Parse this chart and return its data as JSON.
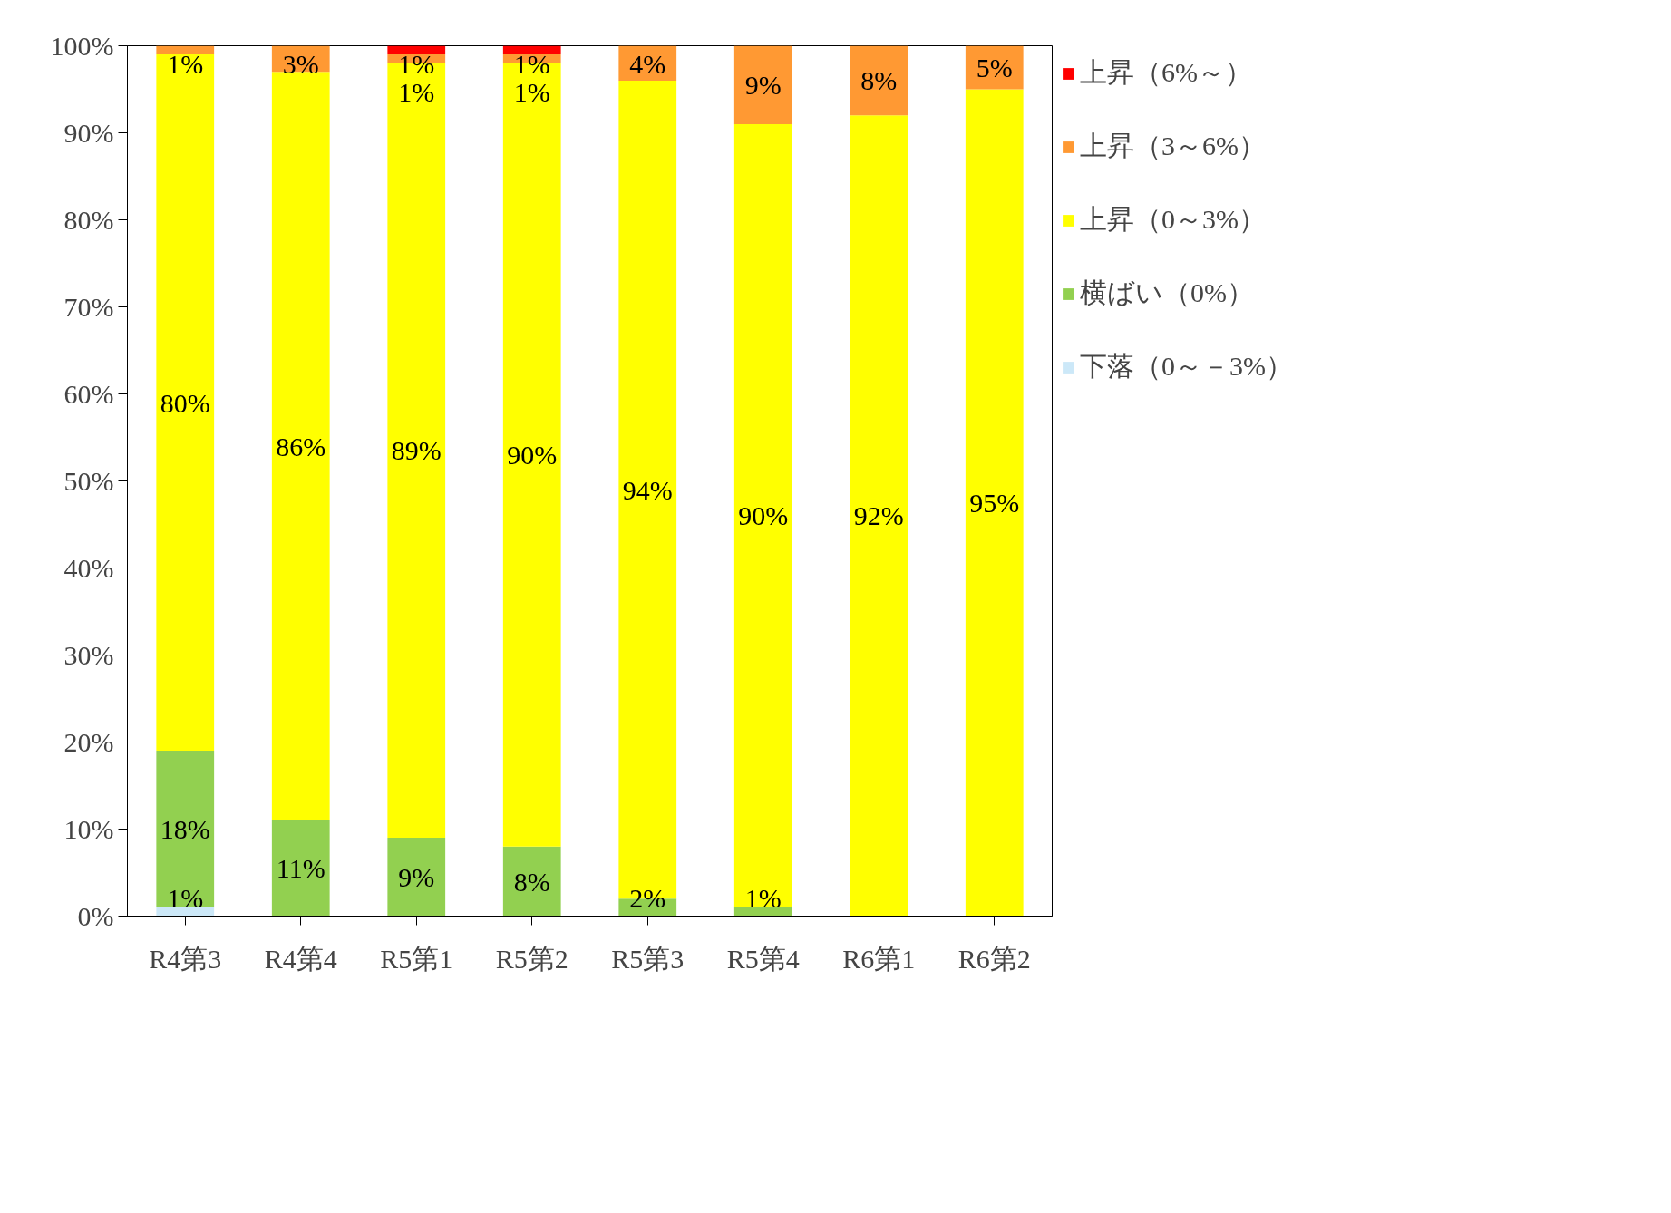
{
  "chart_data": {
    "type": "bar",
    "stacked": true,
    "legend": "right",
    "grid": false,
    "categories": [
      "R4第3",
      "R4第4",
      "R5第1",
      "R5第2",
      "R5第3",
      "R5第4",
      "R6第1",
      "R6第2"
    ],
    "ylim": [
      0,
      100
    ],
    "yticks": [
      {
        "value": 0,
        "label": "0%"
      },
      {
        "value": 10,
        "label": "10%"
      },
      {
        "value": 20,
        "label": "20%"
      },
      {
        "value": 30,
        "label": "30%"
      },
      {
        "value": 40,
        "label": "40%"
      },
      {
        "value": 50,
        "label": "50%"
      },
      {
        "value": 60,
        "label": "60%"
      },
      {
        "value": 70,
        "label": "70%"
      },
      {
        "value": 80,
        "label": "80%"
      },
      {
        "value": 90,
        "label": "90%"
      },
      {
        "value": 100,
        "label": "100%"
      }
    ],
    "series": [
      {
        "name": "下落（0～－3%）",
        "color": "#cce8f8",
        "values": [
          1,
          null,
          null,
          null,
          null,
          null,
          null,
          null
        ],
        "value_labels": [
          "1%",
          null,
          null,
          null,
          null,
          null,
          null,
          null
        ]
      },
      {
        "name": "横ばい（0%）",
        "color": "#92d050",
        "values": [
          18,
          11,
          9,
          8,
          2,
          1,
          null,
          null
        ],
        "value_labels": [
          "18%",
          "11%",
          "9%",
          "8%",
          "2%",
          "1%",
          null,
          null
        ]
      },
      {
        "name": "上昇（0～3%）",
        "color": "#ffff00",
        "values": [
          80,
          86,
          89,
          90,
          94,
          90,
          92,
          95
        ],
        "value_labels": [
          "80%",
          "86%",
          "89%",
          "90%",
          "94%",
          "90%",
          "92%",
          "95%"
        ]
      },
      {
        "name": "上昇（3～6%）",
        "color": "#ff9933",
        "values": [
          1,
          3,
          1,
          1,
          4,
          9,
          8,
          5
        ],
        "value_labels": [
          "1%",
          "3%",
          "1%",
          "1%",
          "4%",
          "9%",
          "8%",
          "5%"
        ]
      },
      {
        "name": "上昇（6%～）",
        "color": "#ff0000",
        "values": [
          null,
          null,
          1,
          1,
          null,
          null,
          null,
          null
        ],
        "value_labels": [
          null,
          null,
          "1%",
          "1%",
          null,
          null,
          null,
          null
        ]
      }
    ]
  }
}
